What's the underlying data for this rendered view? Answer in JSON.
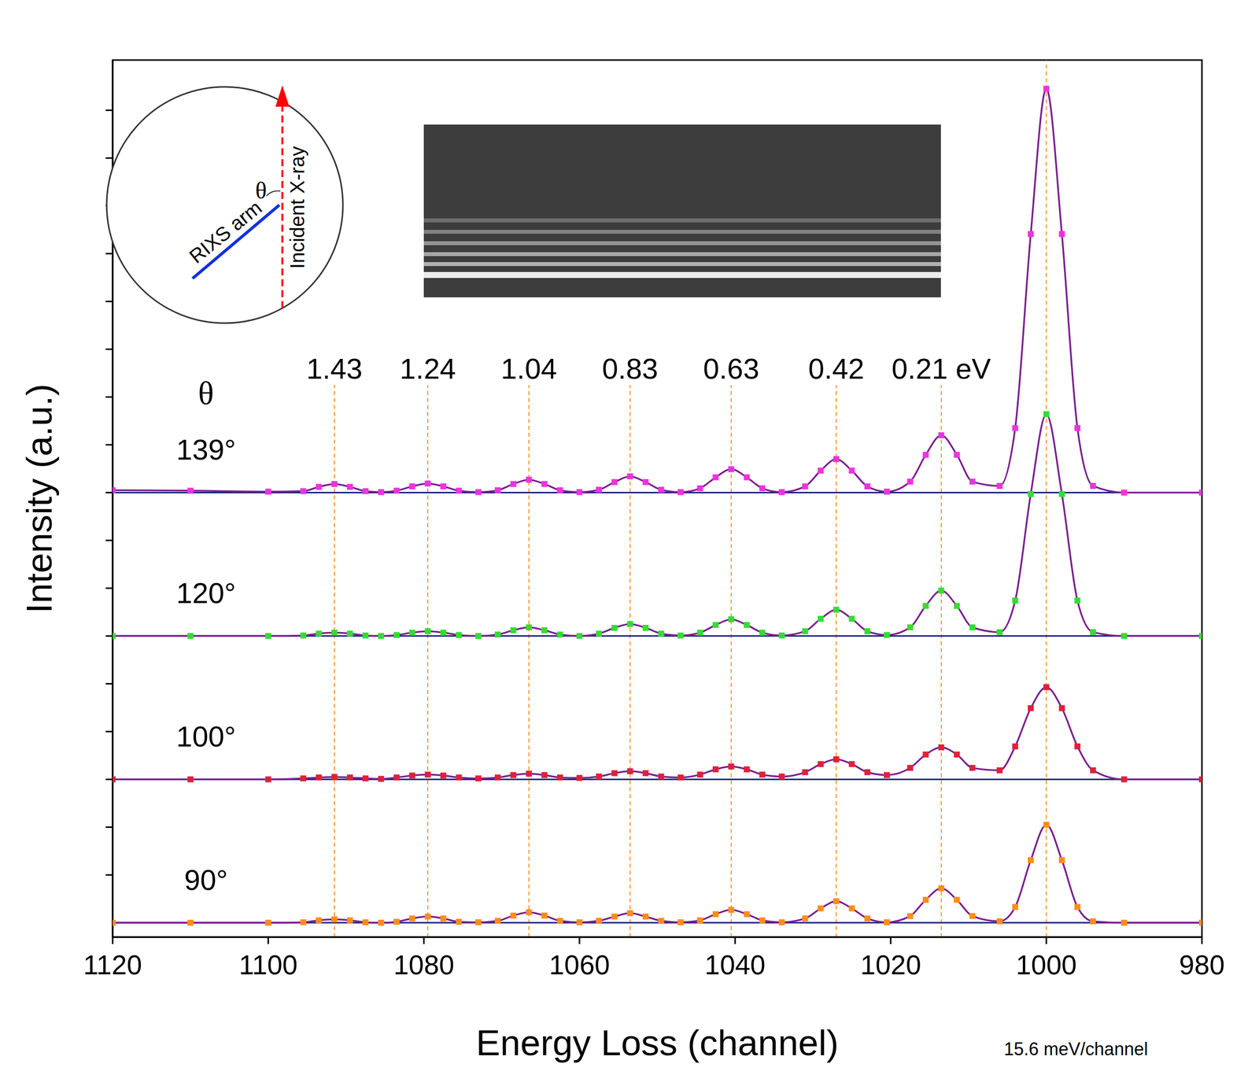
{
  "chart_data": {
    "type": "line",
    "xlabel": "Energy Loss (channel)",
    "ylabel": "Intensity (a.u.)",
    "annotations": [
      "15.6 meV/channel"
    ],
    "series_header": "θ",
    "inset": {
      "arm_label": "RIXS arm",
      "beam_label": "Incident X-ray",
      "angle_label": "θ"
    },
    "xlim": [
      1120,
      980
    ],
    "xticks": [
      1120,
      1100,
      1080,
      1060,
      1040,
      1020,
      1000,
      980
    ],
    "ylim": [
      -0.3,
      18.05
    ],
    "yticks": [
      1,
      2,
      3,
      4,
      5,
      6,
      7,
      8,
      9,
      10,
      11,
      12,
      13,
      14,
      15,
      16,
      17
    ],
    "tick_labels": "x",
    "marker": "square",
    "peak_x": [
      1000,
      1013.5,
      1027,
      1040.5,
      1053.5,
      1066.5,
      1079.5,
      1091.5
    ],
    "peak_labels": [
      null,
      "0.21 eV",
      "0.42",
      "0.63",
      "0.83",
      "1.04",
      "1.24",
      "1.43"
    ],
    "x": [
      980,
      990,
      994,
      996,
      998,
      1000,
      1002,
      1004,
      1006,
      1009.5,
      1011.5,
      1013.5,
      1015.5,
      1017.5,
      1020.5,
      1023,
      1025,
      1027,
      1029,
      1031,
      1034,
      1036.5,
      1038.5,
      1040.5,
      1042.5,
      1044.5,
      1047,
      1049.5,
      1051.5,
      1053.5,
      1055.5,
      1057.5,
      1060,
      1062.5,
      1064.5,
      1066.5,
      1068.5,
      1070.5,
      1073,
      1075.5,
      1077.5,
      1079.5,
      1081.5,
      1083.5,
      1085.5,
      1087.5,
      1089.5,
      1091.5,
      1093.5,
      1095.5,
      1100,
      1110,
      1120
    ],
    "series": [
      {
        "name": "90°",
        "color": "#ff8c1a",
        "offset": 0,
        "values": [
          0,
          0,
          0.03,
          0.33,
          1.31,
          2.05,
          1.31,
          0.33,
          0.03,
          0.14,
          0.48,
          0.72,
          0.48,
          0.14,
          0.01,
          0.09,
          0.3,
          0.45,
          0.3,
          0.09,
          0.01,
          0.05,
          0.18,
          0.27,
          0.18,
          0.05,
          0.01,
          0.04,
          0.13,
          0.2,
          0.13,
          0.04,
          0.01,
          0.04,
          0.15,
          0.22,
          0.15,
          0.04,
          0.01,
          0.02,
          0.09,
          0.13,
          0.09,
          0.02,
          0,
          0.01,
          0.05,
          0.07,
          0.05,
          0.01,
          0,
          0,
          0
        ]
      },
      {
        "name": "100°",
        "color": "#e0203a",
        "offset": 3,
        "values": [
          0,
          0,
          0.19,
          0.69,
          1.49,
          1.93,
          1.49,
          0.69,
          0.19,
          0.24,
          0.52,
          0.67,
          0.52,
          0.24,
          0.09,
          0.15,
          0.32,
          0.42,
          0.32,
          0.15,
          0.06,
          0.1,
          0.21,
          0.27,
          0.21,
          0.1,
          0.04,
          0.06,
          0.13,
          0.17,
          0.13,
          0.06,
          0.03,
          0.04,
          0.09,
          0.12,
          0.09,
          0.04,
          0.02,
          0.04,
          0.08,
          0.1,
          0.08,
          0.04,
          0.01,
          0.02,
          0.04,
          0.05,
          0.04,
          0.02,
          0,
          0,
          0
        ]
      },
      {
        "name": "120°",
        "color": "#33dd33",
        "offset": 6,
        "values": [
          0,
          0,
          0.08,
          0.74,
          2.97,
          4.64,
          2.97,
          0.74,
          0.08,
          0.18,
          0.63,
          0.95,
          0.63,
          0.18,
          0.02,
          0.1,
          0.36,
          0.55,
          0.36,
          0.1,
          0.01,
          0.07,
          0.23,
          0.35,
          0.23,
          0.07,
          0.01,
          0.05,
          0.17,
          0.25,
          0.17,
          0.05,
          0,
          0.03,
          0.12,
          0.18,
          0.12,
          0.03,
          0,
          0.02,
          0.07,
          0.1,
          0.07,
          0.02,
          0,
          0.01,
          0.05,
          0.07,
          0.05,
          0.01,
          0,
          0,
          0
        ]
      },
      {
        "name": "139°",
        "color": "#ee33dd",
        "offset": 9,
        "values": [
          0,
          0,
          0.14,
          1.35,
          5.41,
          8.45,
          5.41,
          1.35,
          0.14,
          0.23,
          0.79,
          1.2,
          0.79,
          0.23,
          0.02,
          0.13,
          0.46,
          0.7,
          0.46,
          0.13,
          0.01,
          0.09,
          0.32,
          0.49,
          0.32,
          0.09,
          0.01,
          0.06,
          0.22,
          0.34,
          0.22,
          0.06,
          0.01,
          0.05,
          0.18,
          0.27,
          0.18,
          0.05,
          0.01,
          0.04,
          0.13,
          0.19,
          0.13,
          0.04,
          0.01,
          0.03,
          0.12,
          0.18,
          0.12,
          0.03,
          0.02,
          0.04,
          0.05
        ]
      }
    ]
  }
}
